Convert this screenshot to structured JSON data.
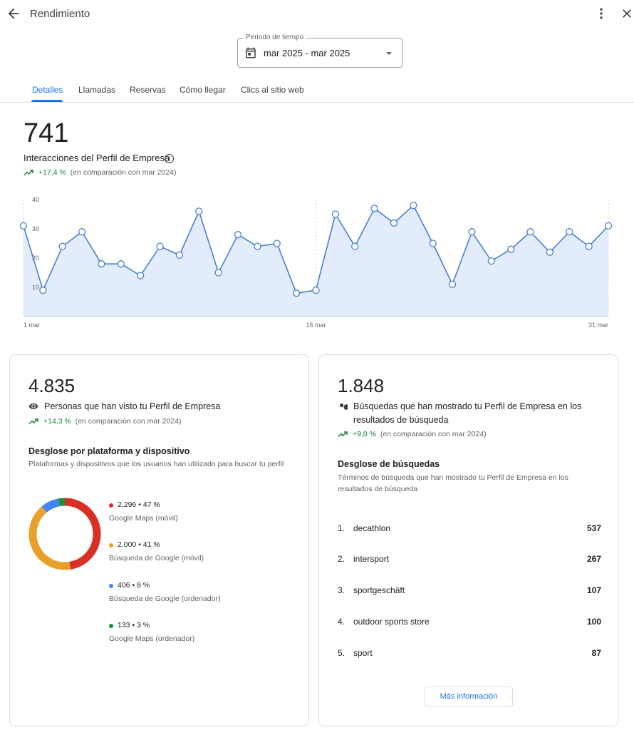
{
  "header": {
    "title": "Rendimiento",
    "back_icon": "arrow-left-icon",
    "menu_icon": "more-vert-icon",
    "close_icon": "close-icon"
  },
  "period": {
    "label": "Periodo de tiempo",
    "value": "mar 2025 - mar 2025"
  },
  "tabs": [
    {
      "label": "Detalles",
      "active": true
    },
    {
      "label": "Llamadas",
      "active": false
    },
    {
      "label": "Reservas",
      "active": false
    },
    {
      "label": "Cómo llegar",
      "active": false
    },
    {
      "label": "Clics al sitio web",
      "active": false
    }
  ],
  "summary": {
    "total": "741",
    "label": "Interacciones del Perfil de Empresa",
    "change": "+17,4 %",
    "comparison": "(en comparación con mar 2024)"
  },
  "chart_data": {
    "type": "area",
    "x_ticks": [
      "1 mar",
      "16 mar",
      "31 mar"
    ],
    "y_ticks": [
      "10",
      "20",
      "30",
      "40"
    ],
    "ylim": [
      0,
      40
    ],
    "x": [
      1,
      2,
      3,
      4,
      5,
      6,
      7,
      8,
      9,
      10,
      11,
      12,
      13,
      14,
      15,
      16,
      17,
      18,
      19,
      20,
      21,
      22,
      23,
      24,
      25,
      26,
      27,
      28,
      29,
      30,
      31
    ],
    "values": [
      31,
      9,
      24,
      29,
      18,
      18,
      14,
      24,
      21,
      36,
      15,
      28,
      24,
      25,
      8,
      9,
      35,
      24,
      37,
      32,
      38,
      25,
      11,
      29,
      19,
      23,
      29,
      22,
      29,
      24,
      31
    ],
    "colors": {
      "line": "#4a7fd4",
      "fill": "#e3ecfb",
      "point_fill": "#ffffff"
    }
  },
  "profile_views": {
    "total": "4.835",
    "label": "Personas que han visto tu Perfil de Empresa",
    "change": "+14,3 %",
    "comparison": "(en comparación con mar 2024)",
    "breakdown_title": "Desglose por plataforma y dispositivo",
    "breakdown_subtitle": "Plataformas y dispositivos que los usuarios han utilizado para buscar tu perfil",
    "platforms": [
      {
        "value": "2.296 • 47 %",
        "name": "Google Maps (móvil)",
        "percent": 47,
        "color": "#d93025"
      },
      {
        "value": "2.000 • 41 %",
        "name": "Búsqueda de Google (móvil)",
        "percent": 41,
        "color": "#e8a02a"
      },
      {
        "value": "406 • 8 %",
        "name": "Búsqueda de Google (ordenador)",
        "percent": 8,
        "color": "#4285f4"
      },
      {
        "value": "133 • 3 %",
        "name": "Google Maps (ordenador)",
        "percent": 3,
        "color": "#1e8e3e"
      }
    ]
  },
  "searches": {
    "total": "1.848",
    "label_line1": "Búsquedas que han mostrado tu Perfil de Empresa en los",
    "label_line2": "resultados de búsqueda",
    "change": "+9,0 %",
    "comparison": "(en comparación con mar 2024)",
    "breakdown_title": "Desglose de búsquedas",
    "breakdown_sub_line1": "Términos de búsqueda que han mostrado tu Perfil de Empresa en los",
    "breakdown_sub_line2": "resultados de búsqueda",
    "terms": [
      {
        "rank": "1.",
        "term": "decathlon",
        "count": "537"
      },
      {
        "rank": "2.",
        "term": "intersport",
        "count": "267"
      },
      {
        "rank": "3.",
        "term": "sportgeschäft",
        "count": "107"
      },
      {
        "rank": "4.",
        "term": "outdoor sports store",
        "count": "100"
      },
      {
        "rank": "5.",
        "term": "sport",
        "count": "87"
      }
    ],
    "more_button": "Más información"
  }
}
